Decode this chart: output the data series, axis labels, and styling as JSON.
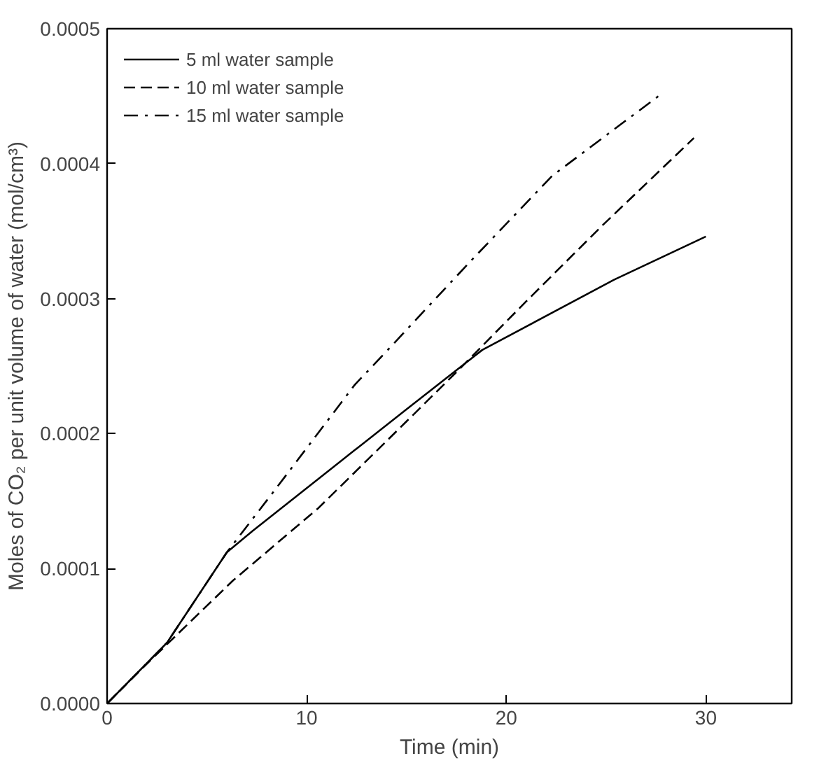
{
  "chart_data": {
    "type": "line",
    "xlabel": "Time (min)",
    "ylabel": "Moles of CO₂ per unit volume of water (mol/cm³)",
    "xlim": [
      0,
      34.3
    ],
    "ylim": [
      0,
      0.0005
    ],
    "xticks": [
      0,
      10,
      20,
      30
    ],
    "yticks": [
      {
        "value": 0,
        "label": "0.0000"
      },
      {
        "value": 0.0001,
        "label": "0.0001"
      },
      {
        "value": 0.0002,
        "label": "0.0002"
      },
      {
        "value": 0.0003,
        "label": "0.0003"
      },
      {
        "value": 0.0004,
        "label": "0.0004"
      },
      {
        "value": 0.0005,
        "label": "0.0005"
      }
    ],
    "grid": false,
    "legend": "top left",
    "marker": "none",
    "series": [
      {
        "name": "5 ml water sample",
        "color": "#000000",
        "line_style": "solid",
        "x": [
          0,
          3,
          6,
          7.3,
          11.4,
          15,
          18.8,
          25.4,
          30
        ],
        "values": [
          0,
          4.5e-05,
          0.000112,
          0.000128,
          0.000176,
          0.000218,
          0.000262,
          0.000314,
          0.000346
        ]
      },
      {
        "name": "10 ml water sample",
        "color": "#000000",
        "line_style": "dashed",
        "x": [
          0,
          2.1,
          6.3,
          10.6,
          15,
          17.6,
          21,
          24.8,
          29.4
        ],
        "values": [
          0,
          3.1e-05,
          9.1e-05,
          0.000145,
          0.000209,
          0.000247,
          0.000298,
          0.000354,
          0.000419
        ]
      },
      {
        "name": "15 ml water sample",
        "color": "#000000",
        "line_style": "dashdot",
        "x": [
          0,
          3,
          6,
          8.55,
          12.4,
          14,
          18.1,
          22.3,
          27.8
        ],
        "values": [
          0,
          4.5e-05,
          0.000112,
          0.000161,
          0.000236,
          0.000261,
          0.000326,
          0.000391,
          0.000452
        ]
      }
    ]
  }
}
